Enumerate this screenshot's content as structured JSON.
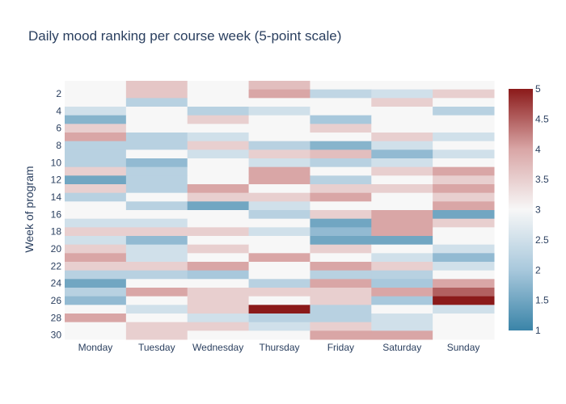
{
  "chart_data": {
    "type": "heatmap",
    "title": "Daily mood ranking per course week (5-point scale)",
    "xlabel": "",
    "ylabel": "Week of program",
    "x": [
      "Monday",
      "Tuesday",
      "Wednesday",
      "Thursday",
      "Friday",
      "Saturday",
      "Sunday"
    ],
    "y": [
      1,
      2,
      3,
      4,
      5,
      6,
      7,
      8,
      9,
      10,
      11,
      12,
      13,
      14,
      15,
      16,
      17,
      18,
      19,
      20,
      21,
      22,
      23,
      24,
      25,
      26,
      27,
      28,
      29,
      30
    ],
    "y_ticks": [
      2,
      4,
      6,
      8,
      10,
      12,
      14,
      16,
      18,
      20,
      22,
      24,
      26,
      28,
      30
    ],
    "y_reversed": true,
    "zlim": [
      1,
      5
    ],
    "colorscale": [
      "#3a84a8",
      "#a8c8dc",
      "#f7f7f7",
      "#d9a6a6",
      "#8b1a1a"
    ],
    "colorbar_ticks": [
      "1",
      "1.5",
      "2",
      "2.5",
      "3",
      "3.5",
      "4",
      "4.5",
      "5"
    ],
    "z": [
      [
        3,
        3.6,
        3,
        3.7,
        3,
        3,
        3
      ],
      [
        3,
        3.6,
        3,
        4,
        2.3,
        2.5,
        3.5
      ],
      [
        3,
        2.2,
        3,
        3,
        3,
        3.5,
        3
      ],
      [
        2.5,
        3,
        2.2,
        2.5,
        3,
        3,
        2.2
      ],
      [
        1.7,
        3,
        3.5,
        3,
        2,
        3,
        3
      ],
      [
        3.5,
        3,
        3,
        3,
        3.5,
        3,
        3
      ],
      [
        4,
        2.2,
        2.5,
        3,
        3,
        3.5,
        2.5
      ],
      [
        2.2,
        2.2,
        3.5,
        2.2,
        1.7,
        2.5,
        3
      ],
      [
        2.2,
        3,
        2.5,
        3.5,
        3.7,
        1.8,
        2.5
      ],
      [
        2.2,
        1.8,
        3,
        2.5,
        2.2,
        2.5,
        3
      ],
      [
        3.5,
        2.2,
        3,
        4,
        3,
        3.5,
        4
      ],
      [
        1.5,
        2.2,
        3,
        4,
        2.2,
        3,
        3.5
      ],
      [
        3.5,
        2.2,
        4,
        3,
        3.5,
        3.5,
        4
      ],
      [
        2.2,
        3,
        3.5,
        3.5,
        4,
        3,
        3.5
      ],
      [
        3,
        2.2,
        1.5,
        2.5,
        3,
        3,
        4
      ],
      [
        3,
        3,
        3,
        2.2,
        3.5,
        4,
        1.5
      ],
      [
        2.5,
        2.5,
        3,
        3,
        1.5,
        4,
        3.5
      ],
      [
        3.5,
        3.5,
        3.5,
        2.5,
        1.8,
        4,
        3
      ],
      [
        2.5,
        1.8,
        3,
        3,
        1.5,
        1.5,
        3
      ],
      [
        3.5,
        2.5,
        3.5,
        3,
        3.5,
        3,
        2.5
      ],
      [
        4,
        2.5,
        3,
        4,
        3,
        2.5,
        1.8
      ],
      [
        3.5,
        3.5,
        4,
        3,
        4,
        3.5,
        2.5
      ],
      [
        2.2,
        2.2,
        2,
        3,
        2.2,
        2.2,
        3
      ],
      [
        1.5,
        3,
        3,
        2.2,
        4,
        2,
        4
      ],
      [
        2.2,
        4,
        3.5,
        3.5,
        3.5,
        4,
        4.5
      ],
      [
        1.8,
        3,
        3.5,
        3,
        3.5,
        2,
        5
      ],
      [
        3,
        2.5,
        3.5,
        5,
        2.2,
        3,
        2.5
      ],
      [
        4,
        3,
        2.5,
        2.2,
        2.2,
        2.5,
        3
      ],
      [
        3,
        3.5,
        3.5,
        2.5,
        3.5,
        2.5,
        3
      ],
      [
        3,
        3.5,
        3,
        3,
        4,
        4,
        3
      ]
    ]
  }
}
